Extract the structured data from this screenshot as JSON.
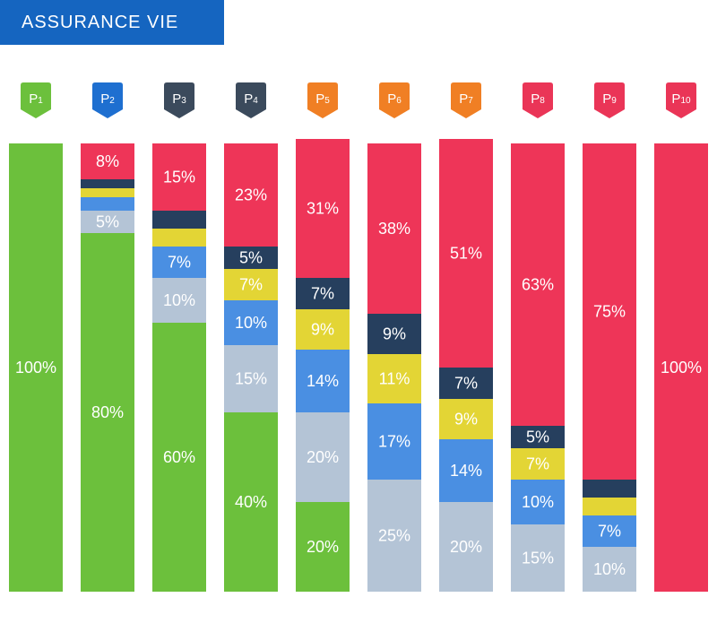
{
  "chart_data": {
    "type": "stacked-bar",
    "title": "ASSURANCE VIE",
    "categories": [
      {
        "prefix": "P",
        "num": "1"
      },
      {
        "prefix": "P",
        "num": "2"
      },
      {
        "prefix": "P",
        "num": "3"
      },
      {
        "prefix": "P",
        "num": "4"
      },
      {
        "prefix": "P",
        "num": "5"
      },
      {
        "prefix": "P",
        "num": "6"
      },
      {
        "prefix": "P",
        "num": "7"
      },
      {
        "prefix": "P",
        "num": "8"
      },
      {
        "prefix": "P",
        "num": "9"
      },
      {
        "prefix": "P",
        "num": "10"
      }
    ],
    "badge_colors": [
      "#6cc03c",
      "#1e6fd0",
      "#3b4a5c",
      "#3b4a5c",
      "#f07f24",
      "#f07f24",
      "#f07f24",
      "#ea3557",
      "#ea3557",
      "#ea3557"
    ],
    "series": [
      {
        "name": "s1",
        "color": "#6cc03c",
        "values": [
          100,
          80,
          60,
          40,
          20,
          0,
          0,
          0,
          0,
          0
        ]
      },
      {
        "name": "s2",
        "color": "#b4c4d6",
        "values": [
          0,
          5,
          10,
          15,
          20,
          25,
          20,
          15,
          10,
          0
        ]
      },
      {
        "name": "s3",
        "color": "#4a8fe2",
        "values": [
          0,
          3,
          7,
          10,
          14,
          17,
          14,
          10,
          7,
          0
        ]
      },
      {
        "name": "s4",
        "color": "#e3d535",
        "values": [
          0,
          2,
          4,
          7,
          9,
          11,
          9,
          7,
          4,
          0
        ]
      },
      {
        "name": "s5",
        "color": "#263f5e",
        "values": [
          0,
          2,
          4,
          5,
          7,
          9,
          7,
          5,
          4,
          0
        ]
      },
      {
        "name": "s6",
        "color": "#ee3558",
        "values": [
          0,
          8,
          15,
          23,
          31,
          38,
          51,
          63,
          75,
          100
        ]
      }
    ],
    "labels": [
      [
        "100%",
        "",
        "",
        "",
        "",
        ""
      ],
      [
        "80%",
        "5%",
        "",
        "",
        "",
        "8%"
      ],
      [
        "60%",
        "10%",
        "7%",
        "",
        "",
        "15%"
      ],
      [
        "40%",
        "15%",
        "10%",
        "7%",
        "5%",
        "23%"
      ],
      [
        "20%",
        "20%",
        "14%",
        "9%",
        "7%",
        "31%"
      ],
      [
        "",
        "25%",
        "17%",
        "11%",
        "9%",
        "38%"
      ],
      [
        "",
        "20%",
        "14%",
        "9%",
        "7%",
        "51%"
      ],
      [
        "",
        "15%",
        "10%",
        "7%",
        "5%",
        "63%"
      ],
      [
        "",
        "10%",
        "7%",
        "",
        "",
        "75%"
      ],
      [
        "",
        "",
        "",
        "",
        "",
        "100%"
      ]
    ],
    "ylim": [
      0,
      100
    ]
  }
}
